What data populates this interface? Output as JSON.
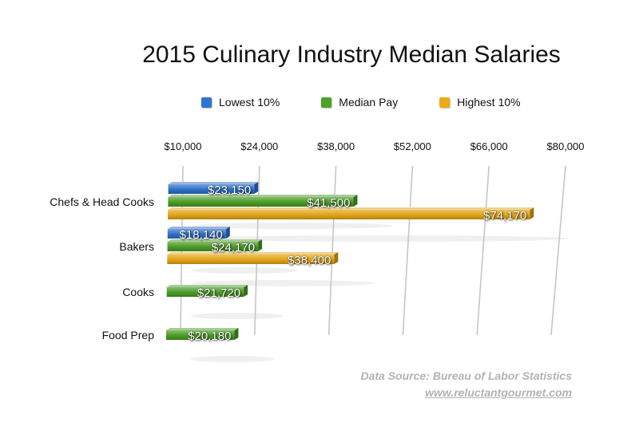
{
  "chart_data": {
    "type": "bar",
    "orientation": "horizontal",
    "title": "2015 Culinary Industry Median Salaries",
    "categories": [
      "Chefs & Head Cooks",
      "Bakers",
      "Cooks",
      "Food Prep"
    ],
    "series": [
      {
        "name": "Lowest 10%",
        "color": "#2d6fc7",
        "values": [
          23150,
          18140,
          null,
          null
        ],
        "labels": [
          "$23,150",
          "$18,140",
          null,
          null
        ]
      },
      {
        "name": "Median Pay",
        "color": "#4a9a25",
        "values": [
          41500,
          24170,
          21720,
          20180
        ],
        "labels": [
          "$41,500",
          "$24,170",
          "$21,720",
          "$20,180"
        ]
      },
      {
        "name": "Highest 10%",
        "color": "#e0a314",
        "values": [
          74170,
          38400,
          null,
          null
        ],
        "labels": [
          "$74,170",
          "$38,400",
          null,
          null
        ]
      }
    ],
    "xaxis": {
      "position": "top",
      "range": [
        10000,
        80000
      ],
      "ticks": [
        10000,
        24000,
        38000,
        52000,
        66000,
        80000
      ],
      "tick_labels": [
        "$10,000",
        "$24,000",
        "$38,000",
        "$52,000",
        "$66,000",
        "$80,000"
      ]
    },
    "grid": true,
    "legend_position": "top"
  },
  "source": {
    "line1": "Data Source: Bureau of Labor Statistics",
    "line2": "www.reluctantgourmet.com"
  }
}
